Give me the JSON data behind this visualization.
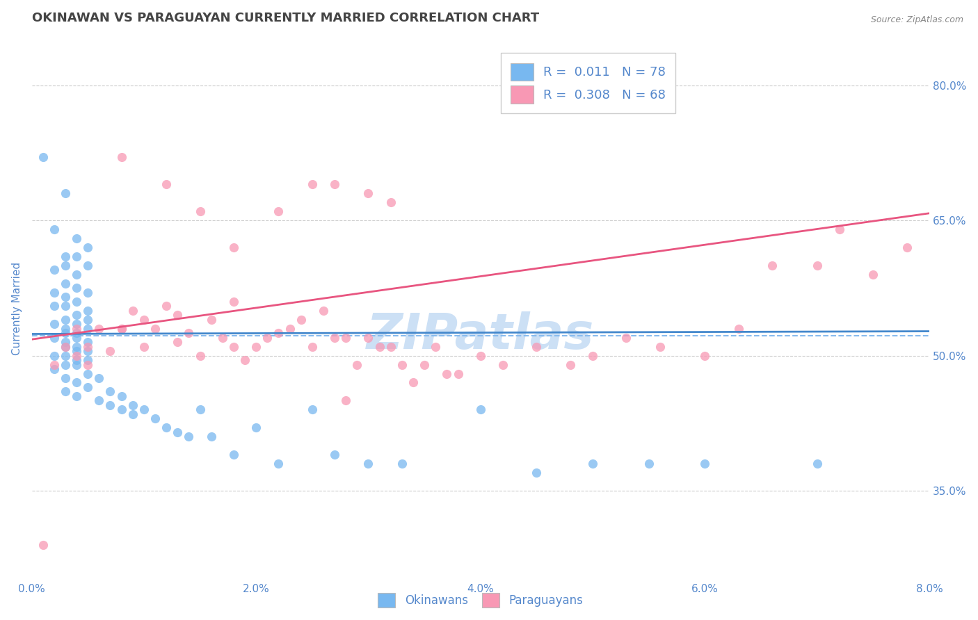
{
  "title": "OKINAWAN VS PARAGUAYAN CURRENTLY MARRIED CORRELATION CHART",
  "source": "Source: ZipAtlas.com",
  "ylabel": "Currently Married",
  "xlim": [
    0.0,
    0.08
  ],
  "ylim": [
    0.25,
    0.855
  ],
  "yticks": [
    0.35,
    0.5,
    0.65,
    0.8
  ],
  "ytick_labels": [
    "35.0%",
    "50.0%",
    "65.0%",
    "80.0%"
  ],
  "xticks": [
    0.0,
    0.02,
    0.04,
    0.06,
    0.08
  ],
  "xtick_labels": [
    "0.0%",
    "2.0%",
    "4.0%",
    "6.0%",
    "8.0%"
  ],
  "okinawan_color": "#78b8f0",
  "paraguayan_color": "#f898b4",
  "okinawan_R": 0.011,
  "okinawan_N": 78,
  "paraguayan_R": 0.308,
  "paraguayan_N": 68,
  "trend_blue_color": "#4488cc",
  "trend_pink_color": "#e85580",
  "dashed_line_color": "#88bbee",
  "dashed_line_y": 0.522,
  "grid_color": "#cccccc",
  "background_color": "#ffffff",
  "title_color": "#444444",
  "axis_label_color": "#5588cc",
  "tick_label_color": "#5588cc",
  "legend_text_color": "#5588cc",
  "watermark_text": "ZIPatlas",
  "watermark_color": "#cce0f5",
  "ok_trend_x0": 0.0,
  "ok_trend_x1": 0.08,
  "ok_trend_y0": 0.524,
  "ok_trend_y1": 0.527,
  "par_trend_x0": 0.0,
  "par_trend_x1": 0.08,
  "par_trend_y0": 0.518,
  "par_trend_y1": 0.658,
  "okinawan_scatter_x": [
    0.001,
    0.003,
    0.002,
    0.004,
    0.003,
    0.005,
    0.004,
    0.003,
    0.002,
    0.005,
    0.004,
    0.003,
    0.004,
    0.002,
    0.005,
    0.003,
    0.004,
    0.002,
    0.003,
    0.005,
    0.004,
    0.003,
    0.005,
    0.004,
    0.002,
    0.003,
    0.005,
    0.004,
    0.003,
    0.004,
    0.002,
    0.005,
    0.003,
    0.004,
    0.003,
    0.005,
    0.004,
    0.003,
    0.002,
    0.004,
    0.005,
    0.003,
    0.004,
    0.002,
    0.005,
    0.003,
    0.004,
    0.005,
    0.003,
    0.004,
    0.006,
    0.007,
    0.006,
    0.008,
    0.007,
    0.008,
    0.009,
    0.01,
    0.009,
    0.011,
    0.012,
    0.013,
    0.014,
    0.016,
    0.015,
    0.018,
    0.02,
    0.022,
    0.025,
    0.027,
    0.03,
    0.033,
    0.04,
    0.045,
    0.05,
    0.055,
    0.06,
    0.07
  ],
  "okinawan_scatter_y": [
    0.72,
    0.68,
    0.64,
    0.63,
    0.61,
    0.62,
    0.61,
    0.6,
    0.595,
    0.6,
    0.59,
    0.58,
    0.575,
    0.57,
    0.57,
    0.565,
    0.56,
    0.555,
    0.555,
    0.55,
    0.545,
    0.54,
    0.54,
    0.535,
    0.535,
    0.53,
    0.53,
    0.525,
    0.525,
    0.52,
    0.52,
    0.515,
    0.515,
    0.51,
    0.51,
    0.505,
    0.505,
    0.5,
    0.5,
    0.495,
    0.495,
    0.49,
    0.49,
    0.485,
    0.48,
    0.475,
    0.47,
    0.465,
    0.46,
    0.455,
    0.475,
    0.46,
    0.45,
    0.455,
    0.445,
    0.44,
    0.445,
    0.44,
    0.435,
    0.43,
    0.42,
    0.415,
    0.41,
    0.41,
    0.44,
    0.39,
    0.42,
    0.38,
    0.44,
    0.39,
    0.38,
    0.38,
    0.44,
    0.37,
    0.38,
    0.38,
    0.38,
    0.38
  ],
  "paraguayan_scatter_x": [
    0.001,
    0.002,
    0.003,
    0.004,
    0.004,
    0.005,
    0.005,
    0.006,
    0.007,
    0.008,
    0.008,
    0.009,
    0.01,
    0.01,
    0.011,
    0.012,
    0.013,
    0.013,
    0.014,
    0.015,
    0.016,
    0.017,
    0.018,
    0.018,
    0.019,
    0.02,
    0.021,
    0.022,
    0.023,
    0.024,
    0.025,
    0.026,
    0.027,
    0.028,
    0.029,
    0.03,
    0.031,
    0.032,
    0.033,
    0.034,
    0.035,
    0.036,
    0.037,
    0.038,
    0.04,
    0.042,
    0.045,
    0.048,
    0.05,
    0.053,
    0.056,
    0.06,
    0.063,
    0.066,
    0.07,
    0.072,
    0.075,
    0.078,
    0.025,
    0.027,
    0.03,
    0.032,
    0.008,
    0.012,
    0.015,
    0.018,
    0.022,
    0.028
  ],
  "paraguayan_scatter_y": [
    0.29,
    0.49,
    0.51,
    0.5,
    0.53,
    0.51,
    0.49,
    0.53,
    0.505,
    0.53,
    0.53,
    0.55,
    0.51,
    0.54,
    0.53,
    0.555,
    0.515,
    0.545,
    0.525,
    0.5,
    0.54,
    0.52,
    0.56,
    0.51,
    0.495,
    0.51,
    0.52,
    0.525,
    0.53,
    0.54,
    0.51,
    0.55,
    0.52,
    0.52,
    0.49,
    0.52,
    0.51,
    0.51,
    0.49,
    0.47,
    0.49,
    0.51,
    0.48,
    0.48,
    0.5,
    0.49,
    0.51,
    0.49,
    0.5,
    0.52,
    0.51,
    0.5,
    0.53,
    0.6,
    0.6,
    0.64,
    0.59,
    0.62,
    0.69,
    0.69,
    0.68,
    0.67,
    0.72,
    0.69,
    0.66,
    0.62,
    0.66,
    0.45
  ]
}
